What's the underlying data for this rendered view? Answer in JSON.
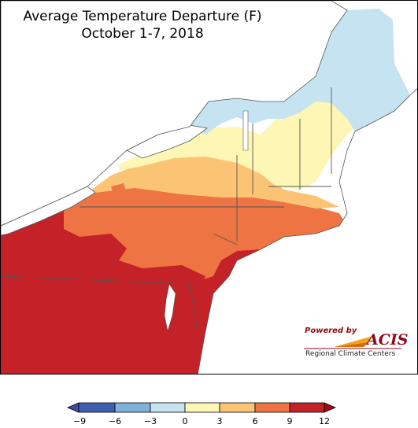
{
  "map": {
    "title_line1": "Average Temperature Departure (F)",
    "title_line2": "October 1-7, 2018",
    "region": "Northeast US"
  },
  "branding": {
    "powered_by": "Powered by",
    "logo_text": "ACIS",
    "subtitle": "Regional Climate Centers"
  },
  "legend": {
    "ticks": [
      "−9",
      "−6",
      "−3",
      "0",
      "3",
      "6",
      "9",
      "12"
    ],
    "bins": [
      {
        "range": "-9 to -6",
        "color": "#3f5fae"
      },
      {
        "range": "-6 to -3",
        "color": "#7fb2d9"
      },
      {
        "range": "-3 to 0",
        "color": "#c6e3f1"
      },
      {
        "range": "0 to 3",
        "color": "#fdf6b4"
      },
      {
        "range": "3 to 6",
        "color": "#fbc474"
      },
      {
        "range": "6 to 9",
        "color": "#ef7444"
      },
      {
        "range": "9 to 12",
        "color": "#c42128"
      }
    ],
    "under_color": "#3a4ba3",
    "over_color": "#9b0a17"
  },
  "colors": {
    "water": "#ffffff",
    "outside": "#ffffff",
    "boundary": "#555555"
  }
}
